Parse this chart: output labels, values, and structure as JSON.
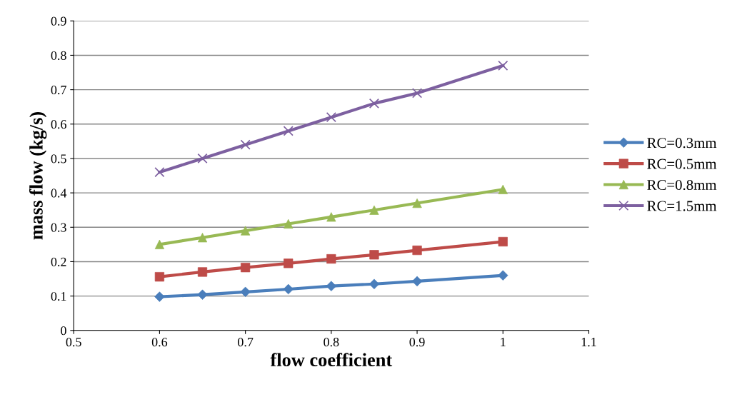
{
  "chart_data": {
    "type": "line",
    "xlabel": "flow coefficient",
    "ylabel": "mass flow (kg/s)",
    "x": [
      0.6,
      0.65,
      0.7,
      0.75,
      0.8,
      0.85,
      0.9,
      1.0
    ],
    "xlim": [
      0.5,
      1.1
    ],
    "xticks": [
      0.5,
      0.6,
      0.7,
      0.8,
      0.9,
      1,
      1.1
    ],
    "ylim": [
      0,
      0.9
    ],
    "yticks": [
      0,
      0.1,
      0.2,
      0.3,
      0.4,
      0.5,
      0.6,
      0.7,
      0.8,
      0.9
    ],
    "grid": "y",
    "legend": "right",
    "series": [
      {
        "name": "RC=0.3mm",
        "color": "#4a7ebb",
        "marker": "diamond",
        "values": [
          0.098,
          0.104,
          0.112,
          0.12,
          0.129,
          0.135,
          0.143,
          0.16
        ]
      },
      {
        "name": "RC=0.5mm",
        "color": "#be4b48",
        "marker": "square",
        "values": [
          0.156,
          0.17,
          0.183,
          0.195,
          0.208,
          0.22,
          0.233,
          0.258
        ]
      },
      {
        "name": "RC=0.8mm",
        "color": "#98b954",
        "marker": "triangle",
        "values": [
          0.25,
          0.27,
          0.29,
          0.31,
          0.33,
          0.35,
          0.37,
          0.41
        ]
      },
      {
        "name": "RC=1.5mm",
        "color": "#7d60a0",
        "marker": "cross",
        "values": [
          0.46,
          0.5,
          0.54,
          0.58,
          0.62,
          0.66,
          0.69,
          0.77
        ]
      }
    ]
  }
}
